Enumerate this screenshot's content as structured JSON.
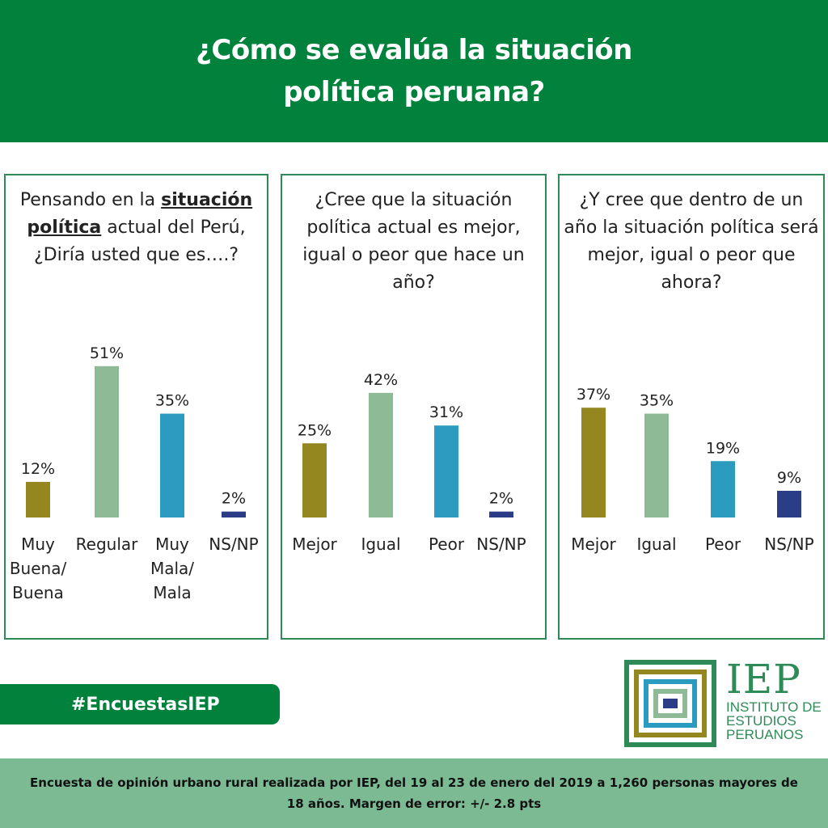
{
  "header": {
    "title": "¿Cómo se evalúa la situación política peruana?"
  },
  "colors": {
    "olive": "#948720",
    "sage": "#8fba96",
    "teal": "#2b9cc0",
    "navy": "#2b3d86",
    "green": "#00813c"
  },
  "panels": [
    {
      "question_pre": "Pensando en la ",
      "question_bold": "situación política",
      "question_post": " actual del Perú, ¿Diría usted que es….?"
    },
    {
      "question": "¿Cree que la situación política actual es mejor, igual o peor que hace un año?"
    },
    {
      "question": "¿Y cree que dentro de un año la situación política será mejor, igual o peor que ahora?"
    }
  ],
  "chart_data": [
    {
      "type": "bar",
      "categories": [
        "Muy Buena/ Buena",
        "Regular",
        "Muy Mala/ Mala",
        "NS/NP"
      ],
      "values": [
        12,
        51,
        35,
        2
      ],
      "value_labels": [
        "12%",
        "51%",
        "35%",
        "2%"
      ],
      "colors": [
        "#948720",
        "#8fba96",
        "#2b9cc0",
        "#2b3d86"
      ],
      "ylim": [
        0,
        60
      ]
    },
    {
      "type": "bar",
      "categories": [
        "Mejor",
        "Igual",
        "Peor",
        "NS/NP"
      ],
      "values": [
        25,
        42,
        31,
        2
      ],
      "value_labels": [
        "25%",
        "42%",
        "31%",
        "2%"
      ],
      "colors": [
        "#948720",
        "#8fba96",
        "#2b9cc0",
        "#2b3d86"
      ],
      "ylim": [
        0,
        60
      ]
    },
    {
      "type": "bar",
      "categories": [
        "Mejor",
        "Igual",
        "Peor",
        "NS/NP"
      ],
      "values": [
        37,
        35,
        19,
        9
      ],
      "value_labels": [
        "37%",
        "35%",
        "19%",
        "9%"
      ],
      "colors": [
        "#948720",
        "#8fba96",
        "#2b9cc0",
        "#2b3d86"
      ],
      "ylim": [
        0,
        60
      ]
    }
  ],
  "hashtag": "#EncuestasIEP",
  "logo": {
    "name": "IEP",
    "line1": "INSTITUTO DE",
    "line2": "ESTUDIOS",
    "line3": "PERUANOS"
  },
  "footer": {
    "note": "Encuesta de opinión urbano rural realizada por IEP, del 19 al 23 de enero del 2019 a 1,260 personas mayores de 18 años. Margen de error: +/- 2.8 pts"
  }
}
